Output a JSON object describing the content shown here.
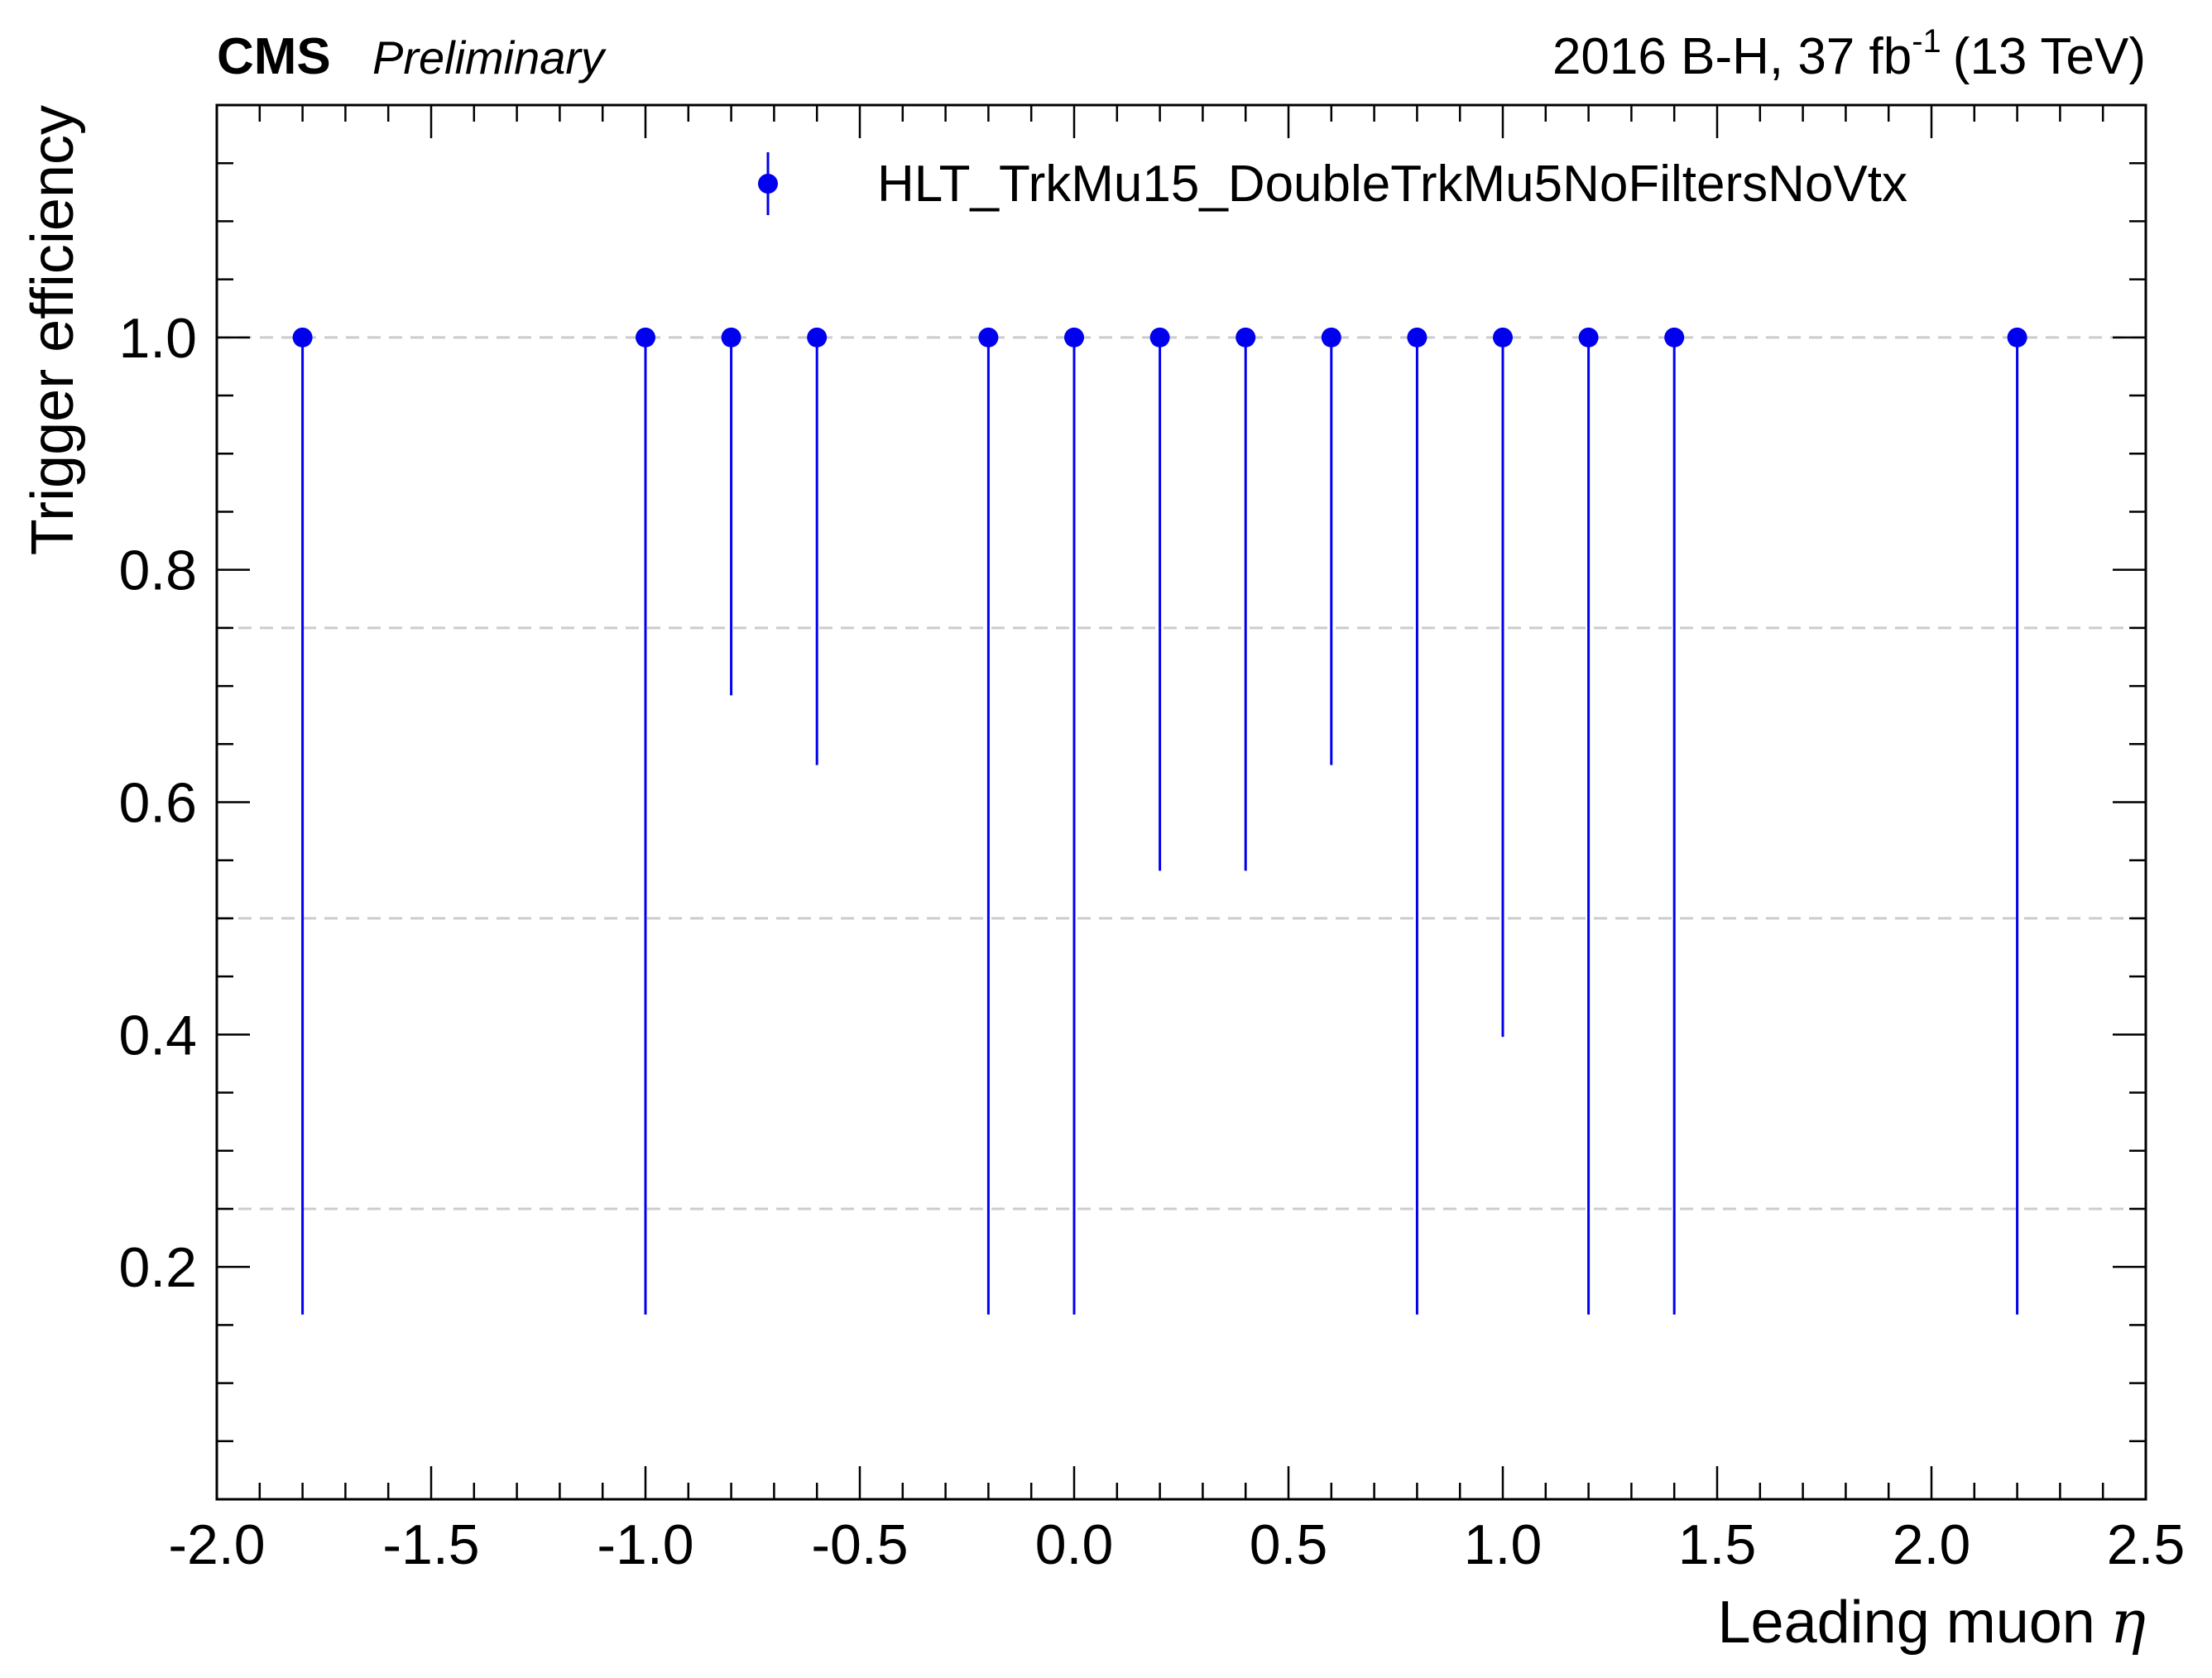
{
  "header": {
    "experiment": "CMS",
    "status": "Preliminary",
    "run_info": "2016 B-H, 37 fb",
    "lumi_exponent": "-1",
    "energy": "(13 TeV)"
  },
  "chart_data": {
    "type": "scatter",
    "xlabel": "Leading muon",
    "xlabel_symbol": "η",
    "ylabel": "Trigger efficiency",
    "xlim": [
      -2.0,
      2.5
    ],
    "ylim": [
      0.0,
      1.2
    ],
    "x_ticks": [
      "-2.0",
      "-1.5",
      "-1.0",
      "-0.5",
      "0.0",
      "0.5",
      "1.0",
      "1.5",
      "2.0",
      "2.5"
    ],
    "y_ticks": [
      "0.2",
      "0.4",
      "0.6",
      "0.8",
      "1.0"
    ],
    "x_tick_values": [
      -2.0,
      -1.5,
      -1.0,
      -0.5,
      0.0,
      0.5,
      1.0,
      1.5,
      2.0,
      2.5
    ],
    "y_tick_values": [
      0.2,
      0.4,
      0.6,
      0.8,
      1.0
    ],
    "grid_y": [
      0.25,
      0.5,
      0.75,
      1.0
    ],
    "legend_position": "top-right",
    "series": [
      {
        "name": "HLT_TrkMu15_DoubleTrkMu5NoFiltersNoVtx",
        "color": "#0000ee",
        "points": [
          {
            "x": -1.8,
            "y": 1.0,
            "y_low": 0.159
          },
          {
            "x": -1.0,
            "y": 1.0,
            "y_low": 0.159
          },
          {
            "x": -0.8,
            "y": 1.0,
            "y_low": 0.692
          },
          {
            "x": -0.6,
            "y": 1.0,
            "y_low": 0.632
          },
          {
            "x": -0.2,
            "y": 1.0,
            "y_low": 0.159
          },
          {
            "x": 0.0,
            "y": 1.0,
            "y_low": 0.159
          },
          {
            "x": 0.2,
            "y": 1.0,
            "y_low": 0.541
          },
          {
            "x": 0.4,
            "y": 1.0,
            "y_low": 0.541
          },
          {
            "x": 0.6,
            "y": 1.0,
            "y_low": 0.632
          },
          {
            "x": 0.8,
            "y": 1.0,
            "y_low": 0.159
          },
          {
            "x": 1.0,
            "y": 1.0,
            "y_low": 0.398
          },
          {
            "x": 1.2,
            "y": 1.0,
            "y_low": 0.159
          },
          {
            "x": 1.4,
            "y": 1.0,
            "y_low": 0.159
          },
          {
            "x": 2.2,
            "y": 1.0,
            "y_low": 0.159
          }
        ]
      }
    ]
  }
}
